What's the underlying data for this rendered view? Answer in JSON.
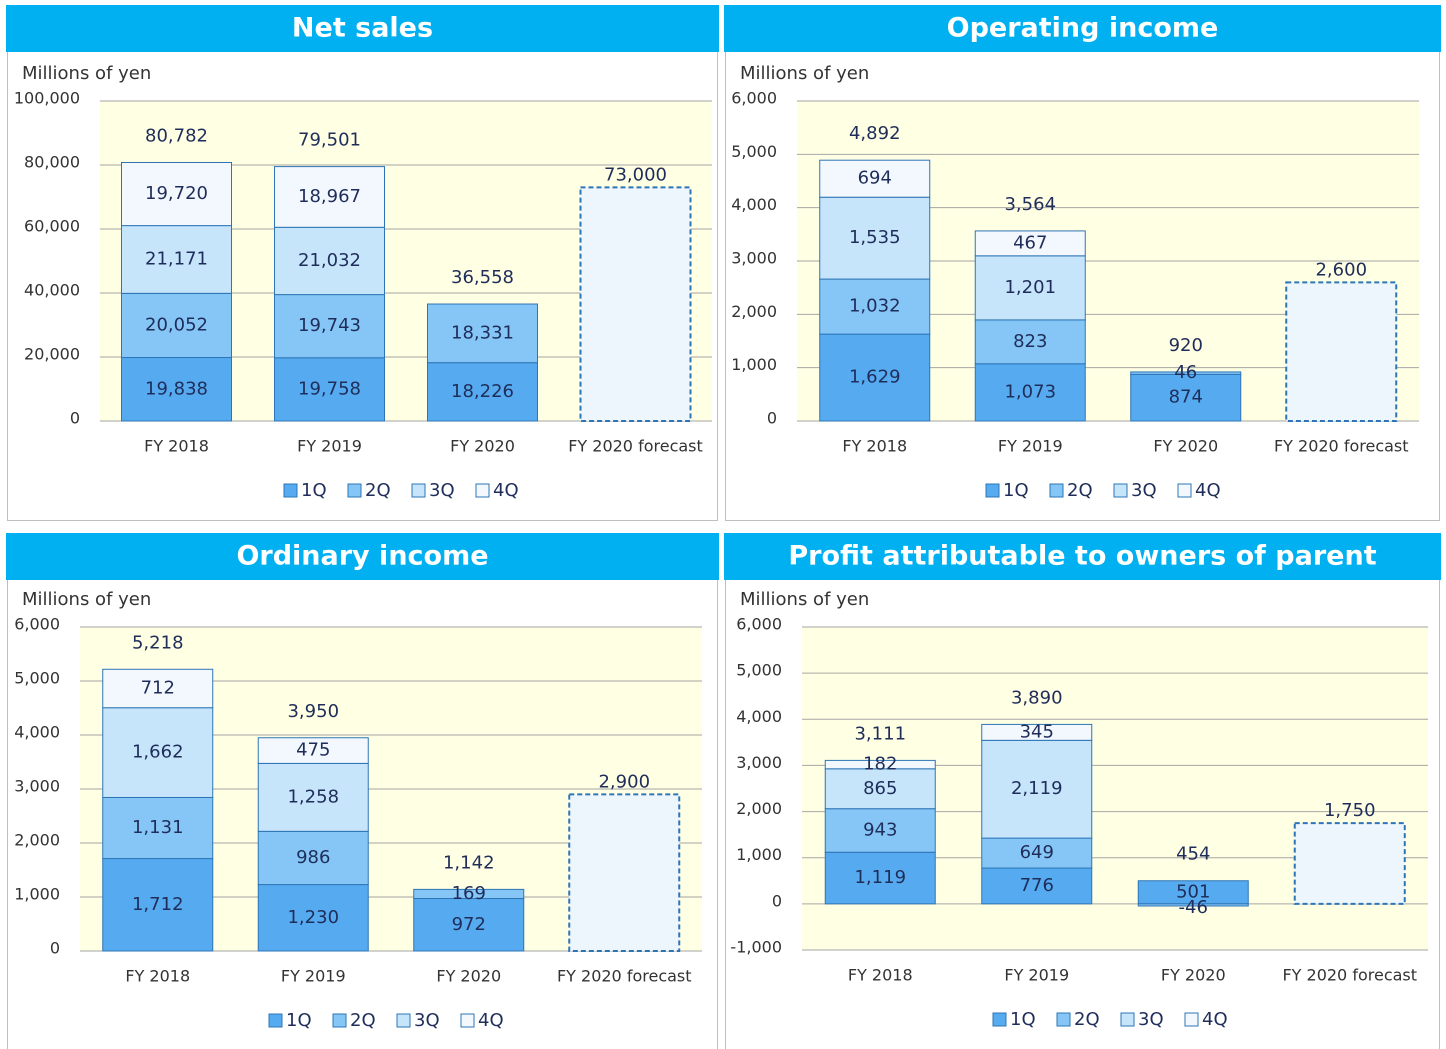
{
  "chart_data": [
    {
      "type": "stacked-bar",
      "title": "Net  sales",
      "ylabel": "Millions of yen",
      "categories": [
        "FY 2018",
        "FY 2019",
        "FY 2020",
        "FY 2020 forecast"
      ],
      "series": [
        {
          "name": "1Q",
          "color": "#56aaf0",
          "values": [
            19838,
            19758,
            18226,
            null
          ],
          "value_labels": [
            "19,838",
            "19,758",
            "18,226",
            null
          ]
        },
        {
          "name": "2Q",
          "color": "#85c6f6",
          "values": [
            20052,
            19743,
            18331,
            null
          ],
          "value_labels": [
            "20,052",
            "19,743",
            "18,331",
            null
          ]
        },
        {
          "name": "3Q",
          "color": "#c6e5fb",
          "values": [
            21171,
            21032,
            null,
            null
          ],
          "value_labels": [
            "21,171",
            "21,032",
            null,
            null
          ]
        },
        {
          "name": "4Q",
          "color": "#f2f8fe",
          "values": [
            19720,
            18967,
            null,
            null
          ],
          "value_labels": [
            "19,720",
            "18,967",
            null,
            null
          ]
        }
      ],
      "totals": [
        80782,
        79501,
        36558,
        null
      ],
      "total_labels": [
        "80,782",
        "79,501",
        "36,558",
        null
      ],
      "forecast": [
        null,
        null,
        null,
        73000
      ],
      "forecast_labels": [
        null,
        null,
        null,
        "73,000"
      ],
      "ylim": [
        0,
        100000
      ],
      "yticks": [
        0,
        {
          "value": 20000,
          "label": "20,000"
        },
        {
          "value": 40000,
          "label": "40,000"
        },
        {
          "value": 60000,
          "label": "60,000"
        },
        {
          "value": 80000,
          "label": "80,000"
        },
        {
          "value": 100000,
          "label": "100,000"
        }
      ],
      "grid": true,
      "negative_label_color": "#ff0000"
    },
    {
      "type": "stacked-bar",
      "title": "Operating income",
      "ylabel": "Millions of yen",
      "categories": [
        "FY 2018",
        "FY 2019",
        "FY 2020",
        "FY 2020 forecast"
      ],
      "series": [
        {
          "name": "1Q",
          "color": "#56aaf0",
          "values": [
            1629,
            1073,
            874,
            null
          ],
          "value_labels": [
            "1,629",
            "1,073",
            "874",
            null
          ]
        },
        {
          "name": "2Q",
          "color": "#85c6f6",
          "values": [
            1032,
            823,
            46,
            null
          ],
          "value_labels": [
            "1,032",
            "823",
            "46",
            null
          ]
        },
        {
          "name": "3Q",
          "color": "#c6e5fb",
          "values": [
            1535,
            1201,
            null,
            null
          ],
          "value_labels": [
            "1,535",
            "1,201",
            null,
            null
          ]
        },
        {
          "name": "4Q",
          "color": "#f2f8fe",
          "values": [
            694,
            467,
            null,
            null
          ],
          "value_labels": [
            "694",
            "467",
            null,
            null
          ]
        }
      ],
      "totals": [
        4892,
        3564,
        920,
        null
      ],
      "total_labels": [
        "4,892",
        "3,564",
        "920",
        null
      ],
      "forecast": [
        null,
        null,
        null,
        2600
      ],
      "forecast_labels": [
        null,
        null,
        null,
        "2,600"
      ],
      "ylim": [
        0,
        6000
      ],
      "yticks": [
        0,
        {
          "value": 1000,
          "label": "1,000"
        },
        {
          "value": 2000,
          "label": "2,000"
        },
        {
          "value": 3000,
          "label": "3,000"
        },
        {
          "value": 4000,
          "label": "4,000"
        },
        {
          "value": 5000,
          "label": "5,000"
        },
        {
          "value": 6000,
          "label": "6,000"
        }
      ],
      "grid": true,
      "negative_label_color": "#ff0000"
    },
    {
      "type": "stacked-bar",
      "title": "Ordinary income",
      "ylabel": "Millions of yen",
      "categories": [
        "FY 2018",
        "FY 2019",
        "FY 2020",
        "FY 2020 forecast"
      ],
      "series": [
        {
          "name": "1Q",
          "color": "#56aaf0",
          "values": [
            1712,
            1230,
            972,
            null
          ],
          "value_labels": [
            "1,712",
            "1,230",
            "972",
            null
          ]
        },
        {
          "name": "2Q",
          "color": "#85c6f6",
          "values": [
            1131,
            986,
            169,
            null
          ],
          "value_labels": [
            "1,131",
            "986",
            "169",
            null
          ]
        },
        {
          "name": "3Q",
          "color": "#c6e5fb",
          "values": [
            1662,
            1258,
            null,
            null
          ],
          "value_labels": [
            "1,662",
            "1,258",
            null,
            null
          ]
        },
        {
          "name": "4Q",
          "color": "#f2f8fe",
          "values": [
            712,
            475,
            null,
            null
          ],
          "value_labels": [
            "712",
            "475",
            null,
            null
          ]
        }
      ],
      "totals": [
        5218,
        3950,
        1142,
        null
      ],
      "total_labels": [
        "5,218",
        "3,950",
        "1,142",
        null
      ],
      "forecast": [
        null,
        null,
        null,
        2900
      ],
      "forecast_labels": [
        null,
        null,
        null,
        "2,900"
      ],
      "ylim": [
        0,
        6000
      ],
      "yticks": [
        0,
        {
          "value": 1000,
          "label": "1,000"
        },
        {
          "value": 2000,
          "label": "2,000"
        },
        {
          "value": 3000,
          "label": "3,000"
        },
        {
          "value": 4000,
          "label": "4,000"
        },
        {
          "value": 5000,
          "label": "5,000"
        },
        {
          "value": 6000,
          "label": "6,000"
        }
      ],
      "grid": true,
      "negative_label_color": "#ff0000"
    },
    {
      "type": "stacked-bar",
      "title": "Profit attributable to owners of parent",
      "ylabel": "Millions of yen",
      "categories": [
        "FY 2018",
        "FY 2019",
        "FY 2020",
        "FY 2020 forecast"
      ],
      "series": [
        {
          "name": "1Q",
          "color": "#56aaf0",
          "values": [
            1119,
            776,
            501,
            null
          ],
          "value_labels": [
            "1,119",
            "776",
            "501",
            null
          ]
        },
        {
          "name": "2Q",
          "color": "#85c6f6",
          "values": [
            943,
            649,
            -46,
            null
          ],
          "value_labels": [
            "943",
            "649",
            "-46",
            null
          ]
        },
        {
          "name": "3Q",
          "color": "#c6e5fb",
          "values": [
            865,
            2119,
            null,
            null
          ],
          "value_labels": [
            "865",
            "2,119",
            null,
            null
          ]
        },
        {
          "name": "4Q",
          "color": "#f2f8fe",
          "values": [
            182,
            345,
            null,
            null
          ],
          "value_labels": [
            "182",
            "345",
            null,
            null
          ]
        }
      ],
      "totals": [
        3111,
        3890,
        454,
        null
      ],
      "total_labels": [
        "3,111",
        "3,890",
        "454",
        null
      ],
      "forecast": [
        null,
        null,
        null,
        1750
      ],
      "forecast_labels": [
        null,
        null,
        null,
        "1,750"
      ],
      "ylim": [
        -1000,
        6000
      ],
      "yticks": [
        {
          "value": -1000,
          "label": "-1,000"
        },
        0,
        {
          "value": 1000,
          "label": "1,000"
        },
        {
          "value": 2000,
          "label": "2,000"
        },
        {
          "value": 3000,
          "label": "3,000"
        },
        {
          "value": 4000,
          "label": "4,000"
        },
        {
          "value": 5000,
          "label": "5,000"
        },
        {
          "value": 6000,
          "label": "6,000"
        }
      ],
      "grid": true,
      "negative_label_color": "#ff0000"
    }
  ]
}
